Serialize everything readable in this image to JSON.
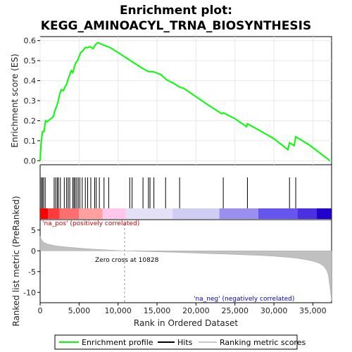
{
  "chart_data": {
    "type": "line",
    "title_line1": "Enrichment plot:",
    "title_line2": "KEGG_AMINOACYL_TRNA_BIOSYNTHESIS",
    "top_panel": {
      "ylabel": "Enrichment score (ES)",
      "ylim": [
        -0.02,
        0.62
      ],
      "yticks": [
        "0.0",
        "0.1",
        "0.2",
        "0.3",
        "0.4",
        "0.5",
        "0.6"
      ],
      "ytick_values": [
        0.0,
        0.1,
        0.2,
        0.3,
        0.4,
        0.5,
        0.6
      ],
      "series": [
        {
          "name": "Enrichment profile",
          "color": "#00ff00",
          "x": [
            0,
            100,
            300,
            500,
            700,
            900,
            1700,
            1900,
            2100,
            2300,
            2500,
            2700,
            3000,
            3200,
            3400,
            3600,
            3800,
            4000,
            4200,
            4400,
            4600,
            4800,
            5000,
            5200,
            5500,
            5800,
            6100,
            6400,
            6800,
            7100,
            7400,
            7700,
            8300,
            9000,
            10000,
            11000,
            12000,
            13000,
            13900,
            14500,
            15500,
            16200,
            17200,
            17800,
            18500,
            20000,
            21500,
            23300,
            23500,
            25000,
            26500,
            26600,
            28000,
            30000,
            31800,
            32000,
            32600,
            32800,
            34500,
            37200
          ],
          "y": [
            0.0,
            0.075,
            0.145,
            0.145,
            0.2,
            0.195,
            0.22,
            0.25,
            0.27,
            0.295,
            0.33,
            0.355,
            0.35,
            0.37,
            0.38,
            0.41,
            0.43,
            0.45,
            0.44,
            0.47,
            0.49,
            0.5,
            0.52,
            0.54,
            0.55,
            0.565,
            0.565,
            0.57,
            0.56,
            0.58,
            0.59,
            0.585,
            0.575,
            0.565,
            0.54,
            0.515,
            0.49,
            0.465,
            0.445,
            0.445,
            0.43,
            0.405,
            0.385,
            0.37,
            0.36,
            0.32,
            0.28,
            0.235,
            0.24,
            0.21,
            0.17,
            0.185,
            0.155,
            0.11,
            0.055,
            0.09,
            0.075,
            0.12,
            0.08,
            0.0
          ]
        }
      ],
      "hits": [
        150,
        300,
        450,
        650,
        1800,
        2000,
        2200,
        2350,
        2600,
        3100,
        3400,
        3600,
        3800,
        4200,
        4350,
        4500,
        4700,
        4900,
        5100,
        5400,
        5800,
        6100,
        6500,
        7000,
        7200,
        7600,
        8200,
        8800,
        11500,
        11800,
        13200,
        13900,
        14100,
        14600,
        16100,
        17900,
        23500,
        26600,
        32000,
        32800
      ]
    },
    "bar_panel": {
      "na_pos_label": "'na_pos' (positively correlated)",
      "na_neg_label": "'na_neg' (negatively correlated)",
      "colors": [
        "#ff0000",
        "#ff3a3a",
        "#ff6f6f",
        "#ffa0a0",
        "#ffc8ea",
        "#e4e0f8",
        "#d0ccf4",
        "#9a8ff0",
        "#6655ee",
        "#4a30e0",
        "#2200cc"
      ],
      "band_edges": [
        0,
        1000,
        2500,
        5000,
        8000,
        11000,
        17000,
        23000,
        28000,
        33000,
        35500,
        37400
      ]
    },
    "bottom_panel": {
      "ylabel": "Ranked list metric (PreRanked)",
      "xlabel": "Rank in Ordered Dataset",
      "ylim": [
        -12.5,
        7.5
      ],
      "yticks": [
        "5",
        "0",
        "-5",
        "-10"
      ],
      "ytick_values": [
        5,
        0,
        -5,
        -10
      ],
      "xticks": [
        "0",
        "5,000",
        "10,000",
        "15,000",
        "20,000",
        "25,000",
        "30,000",
        "35,000"
      ],
      "xtick_values": [
        0,
        5000,
        10000,
        15000,
        20000,
        25000,
        30000,
        35000
      ],
      "zero_cross_label": "Zero cross at 10828",
      "zero_cross": 10828,
      "metric_curve": {
        "x": [
          0,
          200,
          500,
          1000,
          2000,
          3000,
          4000,
          5000,
          6000,
          7000,
          8000,
          9000,
          10000,
          10828,
          12000,
          14000,
          16000,
          18000,
          20000,
          22000,
          24000,
          26000,
          28000,
          30000,
          32000,
          33000,
          34000,
          35000,
          35800,
          36400,
          36800,
          37000,
          37200,
          37400
        ],
        "y": [
          3.5,
          2.6,
          2.0,
          1.6,
          1.2,
          1.0,
          0.8,
          0.65,
          0.5,
          0.38,
          0.28,
          0.18,
          0.08,
          0.0,
          -0.08,
          -0.2,
          -0.3,
          -0.42,
          -0.55,
          -0.68,
          -0.8,
          -0.95,
          -1.1,
          -1.3,
          -1.6,
          -1.8,
          -2.1,
          -2.5,
          -3.0,
          -3.7,
          -4.8,
          -6.0,
          -9.0,
          -12.0
        ]
      }
    },
    "xlim": [
      0,
      37400
    ],
    "legend": {
      "enrichment_label": "Enrichment profile",
      "hits_label": "Hits",
      "metric_label": "Ranking metric scores",
      "enrichment_color": "#00ff00",
      "hits_color": "#000000",
      "metric_color": "#c8c8c8"
    }
  }
}
